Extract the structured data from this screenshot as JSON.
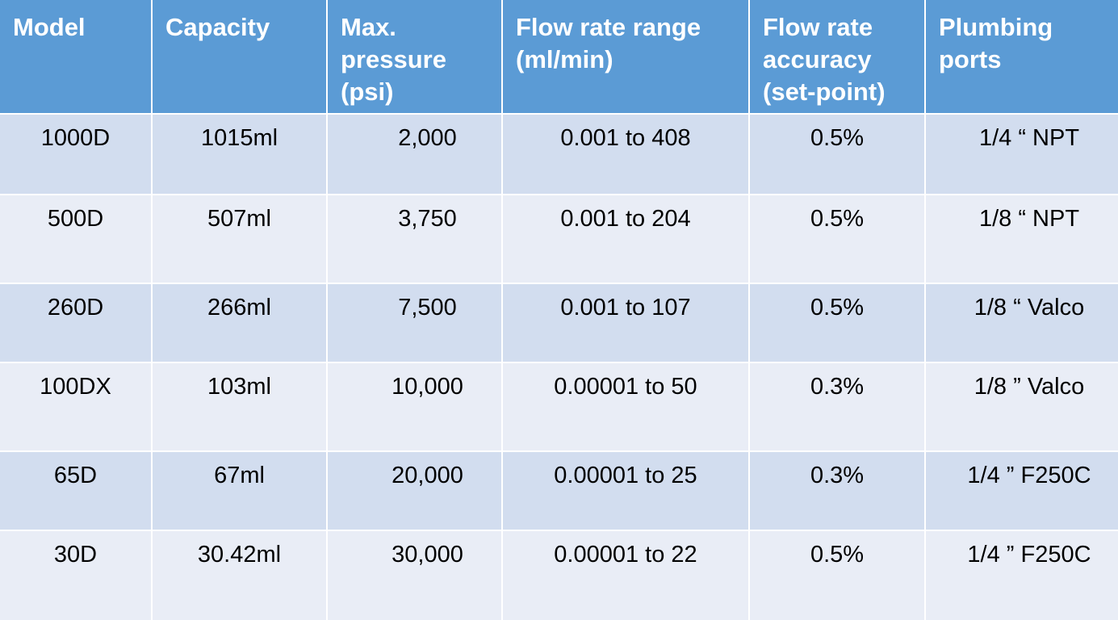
{
  "table": {
    "headers": [
      "Model",
      "Capacity",
      "Max.\npressure\n(psi)",
      "Flow rate range\n(ml/min)",
      "Flow rate\naccuracy\n(set-point)",
      "Plumbing\nports"
    ],
    "rows": [
      [
        "1000D",
        "1015ml",
        "2,000",
        "0.001 to 408",
        "0.5%",
        "1/4 “ NPT"
      ],
      [
        "500D",
        "507ml",
        "3,750",
        "0.001 to 204",
        "0.5%",
        "1/8 “ NPT"
      ],
      [
        "260D",
        "266ml",
        "7,500",
        "0.001 to 107",
        "0.5%",
        "1/8 “ Valco"
      ],
      [
        "100DX",
        "103ml",
        "10,000",
        "0.00001 to 50",
        "0.3%",
        "1/8 ” Valco"
      ],
      [
        "65D",
        "67ml",
        "20,000",
        "0.00001 to 25",
        "0.3%",
        "1/4 ” F250C"
      ],
      [
        "30D",
        "30.42ml",
        "30,000",
        "0.00001 to 22",
        "0.5%",
        "1/4 ” F250C"
      ]
    ]
  },
  "colors": {
    "header_bg": "#5b9bd5",
    "row_dark_bg": "#d2ddef",
    "row_light_bg": "#e9edf6"
  }
}
